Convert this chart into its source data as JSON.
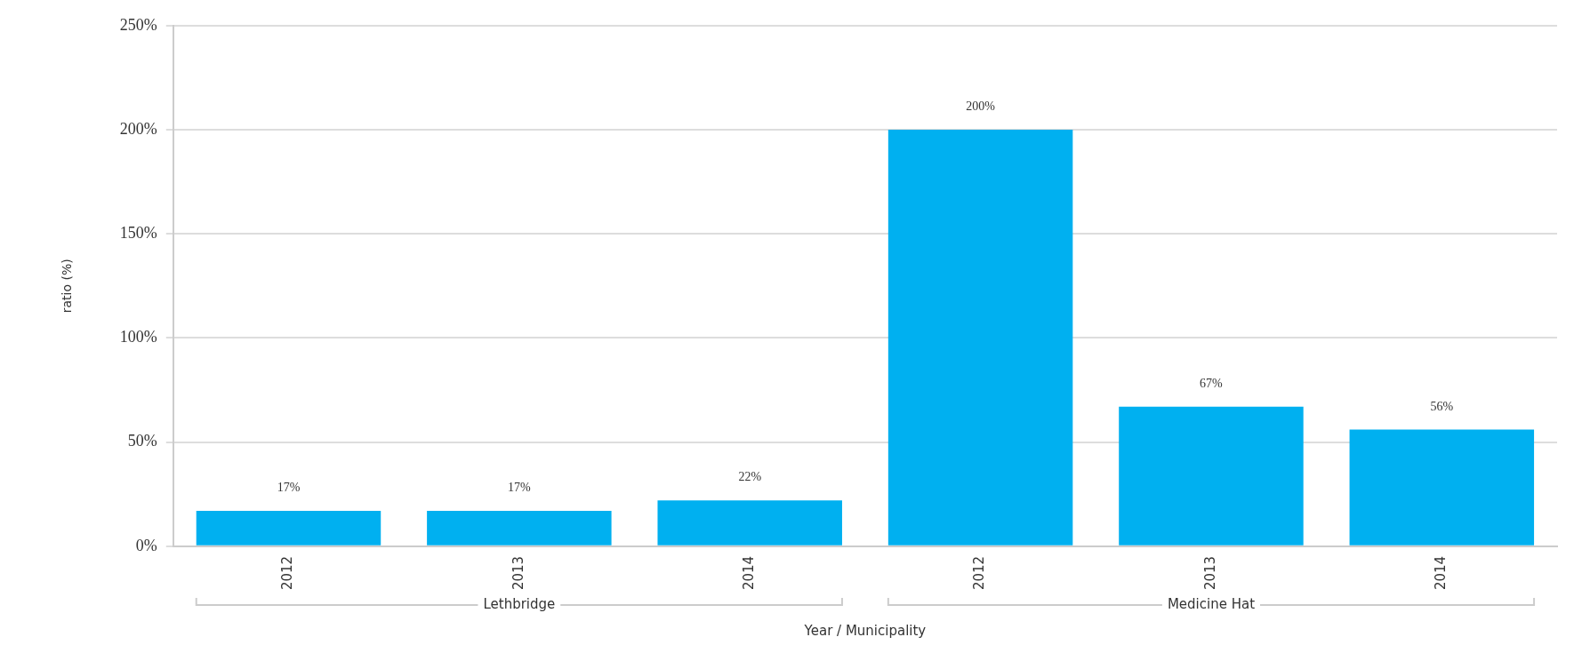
{
  "chart_data": {
    "type": "bar",
    "categories": [
      "2012",
      "2013",
      "2014",
      "2012",
      "2013",
      "2014"
    ],
    "values": [
      17,
      17,
      22,
      200,
      67,
      56
    ],
    "value_labels": [
      "17%",
      "17%",
      "22%",
      "200%",
      "67%",
      "56%"
    ],
    "color": "#00b0f0",
    "ylim": [
      0,
      250
    ],
    "yticks": [
      {
        "value": 0,
        "label": "0%"
      },
      {
        "value": 50,
        "label": "50%"
      },
      {
        "value": 100,
        "label": "100%"
      },
      {
        "value": 150,
        "label": "150%"
      },
      {
        "value": 200,
        "label": "200%"
      },
      {
        "value": 250,
        "label": "250%"
      }
    ],
    "ylabel": "ratio (%)",
    "xlabel": "Year / Municipality",
    "annotations": [
      "Lethbridge",
      "Medicine Hat"
    ],
    "grid": "y",
    "legend": false
  }
}
